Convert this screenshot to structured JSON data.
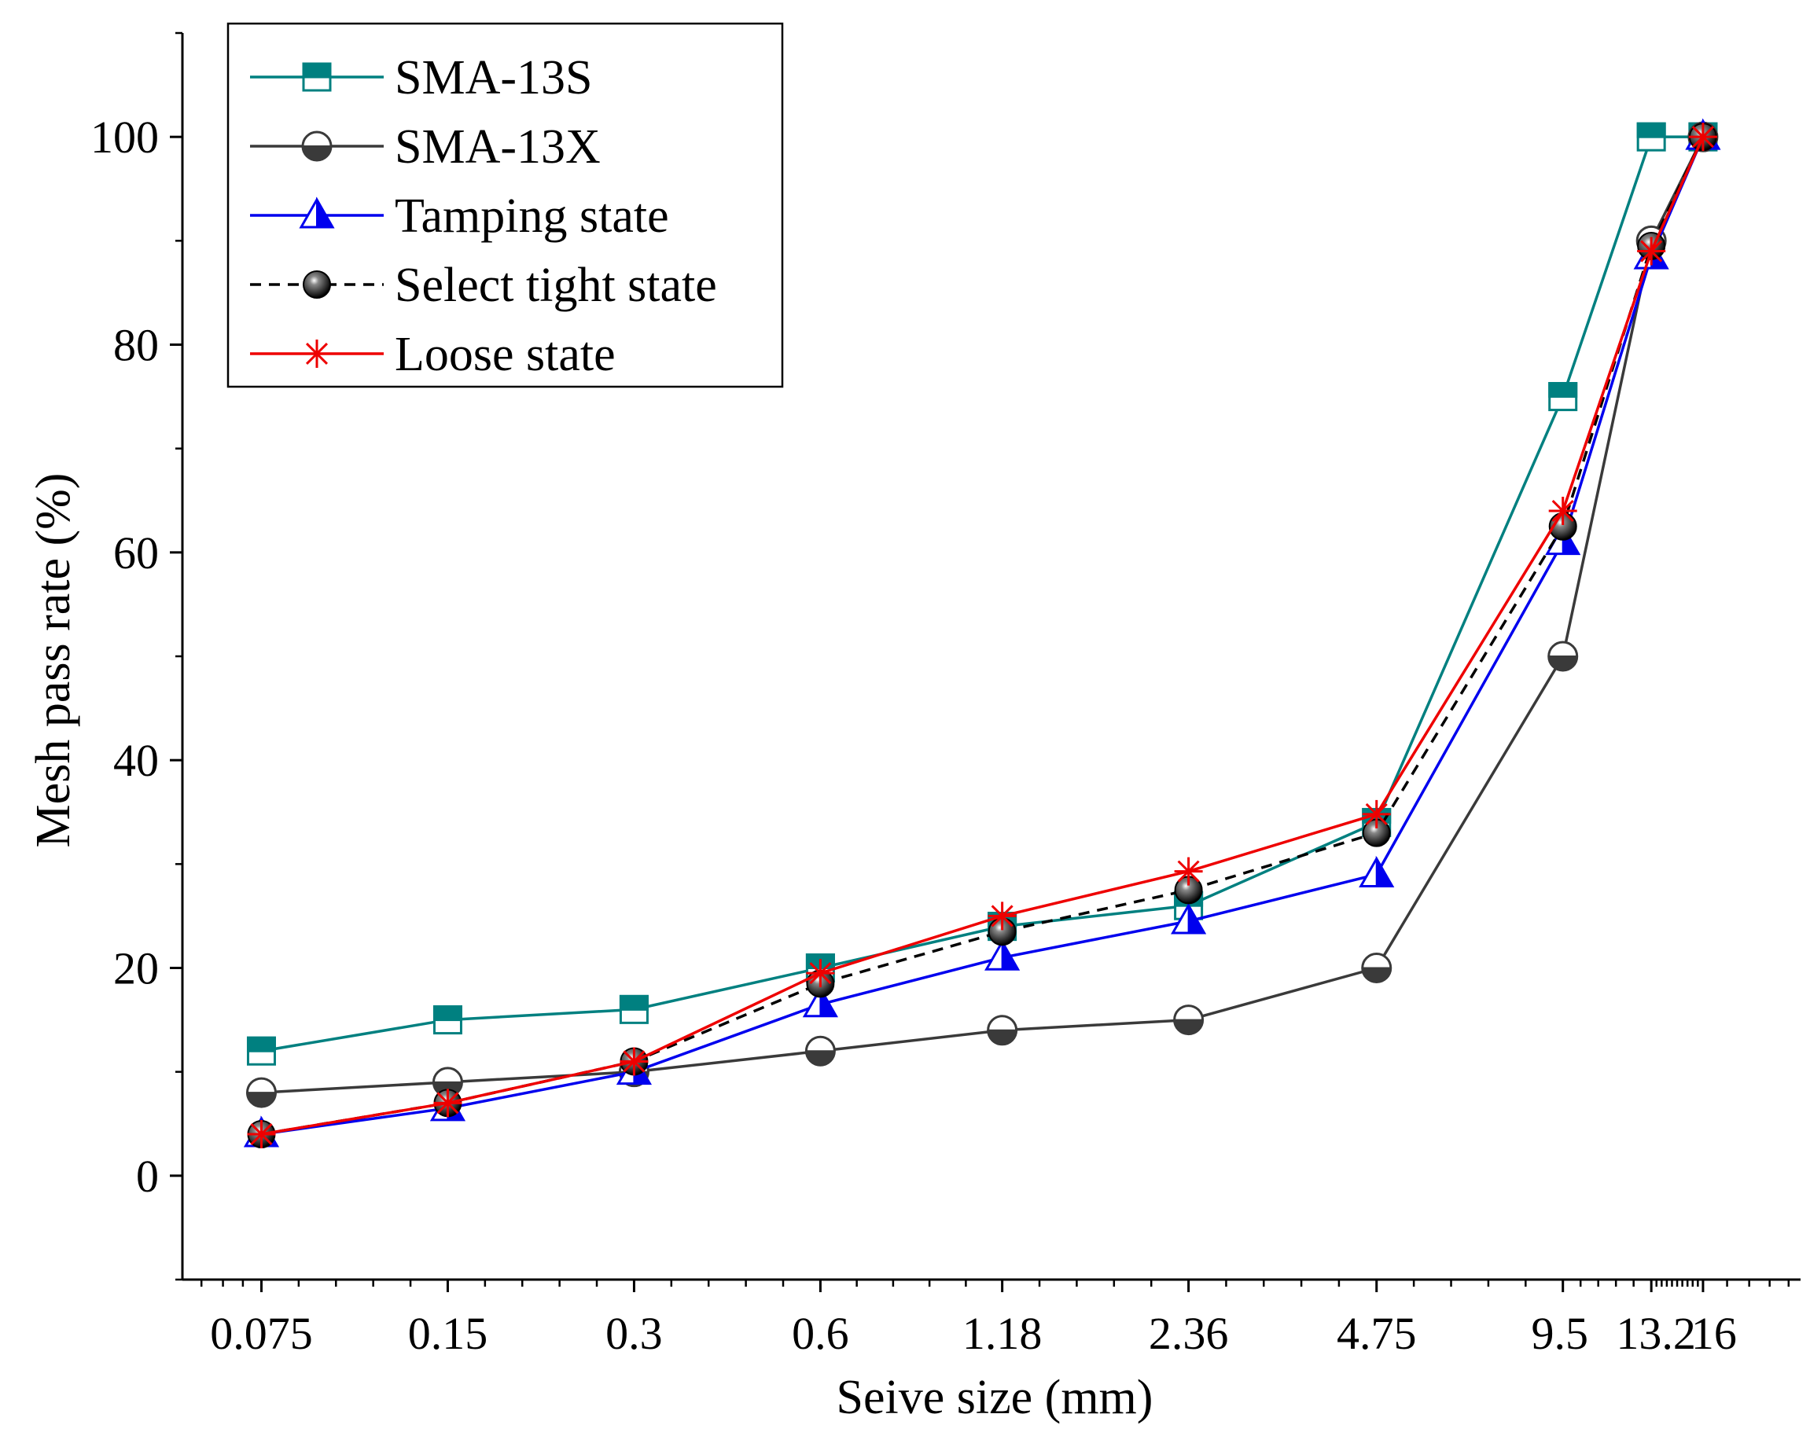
{
  "chart_data": {
    "type": "line",
    "title": "",
    "xlabel": "Seive size (mm)",
    "ylabel": "Mesh pass rate (%)",
    "x_scale": "log",
    "xlim": [
      0.0559,
      23.0
    ],
    "ylim": [
      -10,
      110
    ],
    "x": [
      0.075,
      0.15,
      0.3,
      0.6,
      1.18,
      2.36,
      4.75,
      9.5,
      13.2,
      16
    ],
    "x_tick_labels": [
      "0.075",
      "0.15",
      "0.3",
      "0.6",
      "1.18",
      "2.36",
      "4.75",
      "9.5",
      "13.2",
      "16"
    ],
    "y_ticks": [
      0,
      20,
      40,
      60,
      80,
      100
    ],
    "y_tick_labels": [
      "0",
      "20",
      "40",
      "60",
      "80",
      "100"
    ],
    "legend_position": "top-left",
    "series": [
      {
        "name": "SMA-13S",
        "color": "#008080",
        "line": "solid",
        "marker": "square-half",
        "values": [
          12,
          15,
          16,
          20,
          24,
          26,
          34,
          75,
          100,
          100
        ]
      },
      {
        "name": "SMA-13X",
        "color": "#3a3a3a",
        "line": "solid",
        "marker": "circle-half",
        "values": [
          8,
          9,
          10,
          12,
          14,
          15,
          20,
          50,
          90,
          100
        ]
      },
      {
        "name": "Tamping state",
        "color": "#0000ee",
        "line": "solid",
        "marker": "triangle-half",
        "values": [
          4,
          6.5,
          10,
          16.5,
          21,
          24.5,
          29,
          61,
          88.5,
          100
        ]
      },
      {
        "name": "Select tight state",
        "color": "#000000",
        "line": "dashed",
        "marker": "ball",
        "values": [
          4,
          7,
          11,
          18.5,
          23.5,
          27.5,
          33,
          62.5,
          89.5,
          100
        ]
      },
      {
        "name": "Loose state",
        "color": "#ee0000",
        "line": "solid",
        "marker": "asterisk",
        "values": [
          4,
          7,
          11,
          19.5,
          25,
          29.3,
          34.8,
          64,
          89,
          100
        ]
      }
    ]
  }
}
